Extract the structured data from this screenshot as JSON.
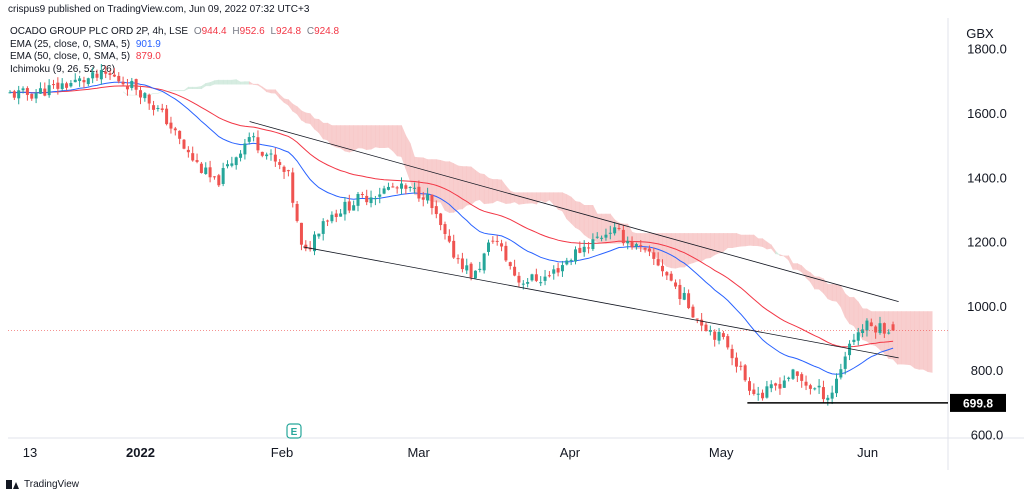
{
  "header": {
    "published_by": "crispus9 published on TradingView.com, Jun 09, 2022 07:32 UTC+3"
  },
  "legend": {
    "symbol": "OCADO GROUP PLC ORD 2P, 4h, LSE",
    "ohlc": [
      {
        "key": "O",
        "value": "944.4"
      },
      {
        "key": "H",
        "value": "952.6"
      },
      {
        "key": "L",
        "value": "924.8"
      },
      {
        "key": "C",
        "value": "924.8"
      }
    ],
    "ema25_label": "EMA (25, close, 0, SMA, 5)",
    "ema25_value": "901.9",
    "ema50_label": "EMA (50, close, 0, SMA, 5)",
    "ema50_value": "879.0",
    "ichimoku_label": "Ichimoku (9, 26, 52, 26)"
  },
  "footer": {
    "brand": "TradingView"
  },
  "colors": {
    "up": "#26a69a",
    "down": "#ef5350",
    "ema25": "#2962ff",
    "ema50": "#f23645",
    "cloud": "#f7c6c6",
    "cloud_green": "#cfe9dc",
    "trend": "#131722"
  },
  "chart_data": {
    "type": "candlestick",
    "currency": "GBX",
    "y_ticks": [
      "1800.0",
      "1600.0",
      "1400.0",
      "1200.0",
      "1000.0",
      "800.0",
      "600.0"
    ],
    "x_ticks": [
      "13",
      "2022",
      "Feb",
      "Mar",
      "Apr",
      "May",
      "Jun"
    ],
    "ylim": [
      600,
      1800
    ],
    "last_close": 924.8,
    "support_level": {
      "value": 699.8,
      "label": "699.8"
    },
    "price_path": [
      {
        "date": "2021-12-13",
        "price": 1660
      },
      {
        "date": "2021-12-20",
        "price": 1690
      },
      {
        "date": "2021-12-29",
        "price": 1720
      },
      {
        "date": "2022-01-04",
        "price": 1680
      },
      {
        "date": "2022-01-10",
        "price": 1580
      },
      {
        "date": "2022-01-14",
        "price": 1480
      },
      {
        "date": "2022-01-20",
        "price": 1380
      },
      {
        "date": "2022-01-27",
        "price": 1530
      },
      {
        "date": "2022-02-01",
        "price": 1450
      },
      {
        "date": "2022-02-04",
        "price": 1400
      },
      {
        "date": "2022-02-07",
        "price": 1150
      },
      {
        "date": "2022-02-11",
        "price": 1270
      },
      {
        "date": "2022-02-18",
        "price": 1330
      },
      {
        "date": "2022-02-25",
        "price": 1370
      },
      {
        "date": "2022-03-04",
        "price": 1350
      },
      {
        "date": "2022-03-09",
        "price": 1180
      },
      {
        "date": "2022-03-14",
        "price": 1090
      },
      {
        "date": "2022-03-18",
        "price": 1220
      },
      {
        "date": "2022-03-23",
        "price": 1080
      },
      {
        "date": "2022-03-29",
        "price": 1090
      },
      {
        "date": "2022-04-04",
        "price": 1170
      },
      {
        "date": "2022-04-11",
        "price": 1240
      },
      {
        "date": "2022-04-14",
        "price": 1210
      },
      {
        "date": "2022-04-21",
        "price": 1130
      },
      {
        "date": "2022-04-29",
        "price": 960
      },
      {
        "date": "2022-05-05",
        "price": 880
      },
      {
        "date": "2022-05-09",
        "price": 760
      },
      {
        "date": "2022-05-12",
        "price": 720
      },
      {
        "date": "2022-05-18",
        "price": 790
      },
      {
        "date": "2022-05-23",
        "price": 740
      },
      {
        "date": "2022-05-26",
        "price": 720
      },
      {
        "date": "2022-05-30",
        "price": 890
      },
      {
        "date": "2022-06-02",
        "price": 940
      },
      {
        "date": "2022-06-08",
        "price": 930
      }
    ],
    "trend_lines": [
      {
        "name": "upper channel",
        "from": {
          "date": "2022-01-27",
          "price": 1575
        },
        "to": {
          "date": "2022-06-09",
          "price": 1015
        }
      },
      {
        "name": "lower channel",
        "from": {
          "date": "2022-02-07",
          "price": 1185
        },
        "to": {
          "date": "2022-06-09",
          "price": 840
        }
      }
    ]
  }
}
